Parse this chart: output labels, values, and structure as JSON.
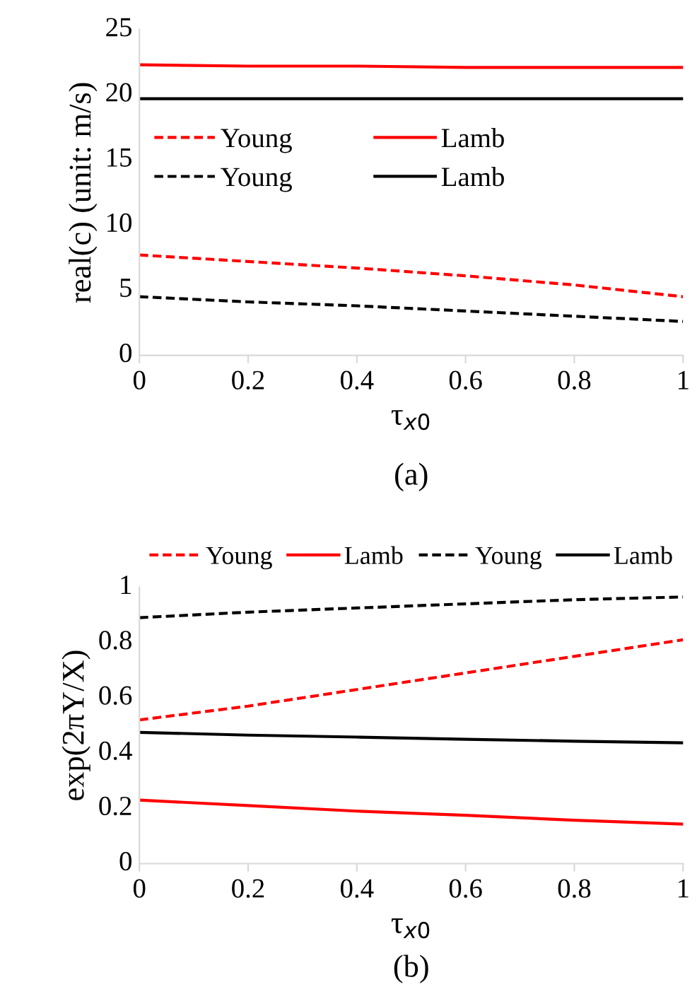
{
  "chart_data": [
    {
      "type": "line",
      "xlabel": "τ$_{x0}$",
      "ylabel": "real(c) (unit: m/s)",
      "annotations": [
        "(a)"
      ],
      "x": [
        0,
        0.2,
        0.4,
        0.6,
        0.8,
        1
      ],
      "xlim": [
        0,
        1
      ],
      "xticks": [
        0,
        0.2,
        0.4,
        0.6,
        0.8,
        1
      ],
      "ylim": [
        0,
        25
      ],
      "yticks": [
        0,
        5,
        10,
        15,
        20,
        25
      ],
      "grid": false,
      "legend": "center",
      "marker": "none",
      "series": [
        {
          "name": "Young",
          "color": "#ff0000",
          "line_style": "dashed",
          "values": [
            7.7,
            7.2,
            6.7,
            6.1,
            5.4,
            4.5
          ]
        },
        {
          "name": "Lamb",
          "color": "#ff0000",
          "line_style": "solid",
          "values": [
            22.3,
            22.2,
            22.2,
            22.1,
            22.1,
            22.1
          ]
        },
        {
          "name": "Young",
          "color": "#000000",
          "line_style": "dashed",
          "values": [
            4.5,
            4.1,
            3.8,
            3.4,
            3.0,
            2.6
          ]
        },
        {
          "name": "Lamb",
          "color": "#000000",
          "line_style": "solid",
          "values": [
            19.7,
            19.7,
            19.7,
            19.7,
            19.7,
            19.7
          ]
        }
      ]
    },
    {
      "type": "line",
      "xlabel": "τ$_{x0}$",
      "ylabel": "exp(2πY/X)",
      "annotations": [
        "(b)"
      ],
      "x": [
        0,
        0.2,
        0.4,
        0.6,
        0.8,
        1
      ],
      "xlim": [
        0,
        1
      ],
      "xticks": [
        0,
        0.2,
        0.4,
        0.6,
        0.8,
        1
      ],
      "ylim": [
        0,
        1
      ],
      "yticks": [
        0,
        0.2,
        0.4,
        0.6,
        0.8,
        1
      ],
      "grid": false,
      "legend": "top",
      "marker": "none",
      "series": [
        {
          "name": "Young",
          "color": "#ff0000",
          "line_style": "dashed",
          "values": [
            0.52,
            0.57,
            0.63,
            0.69,
            0.75,
            0.81
          ]
        },
        {
          "name": "Lamb",
          "color": "#ff0000",
          "line_style": "solid",
          "values": [
            0.23,
            0.21,
            0.19,
            0.175,
            0.157,
            0.143
          ]
        },
        {
          "name": "Young",
          "color": "#000000",
          "line_style": "dashed",
          "values": [
            0.89,
            0.91,
            0.925,
            0.94,
            0.955,
            0.965
          ]
        },
        {
          "name": "Lamb",
          "color": "#000000",
          "line_style": "solid",
          "values": [
            0.475,
            0.465,
            0.458,
            0.45,
            0.443,
            0.437
          ]
        }
      ]
    }
  ]
}
